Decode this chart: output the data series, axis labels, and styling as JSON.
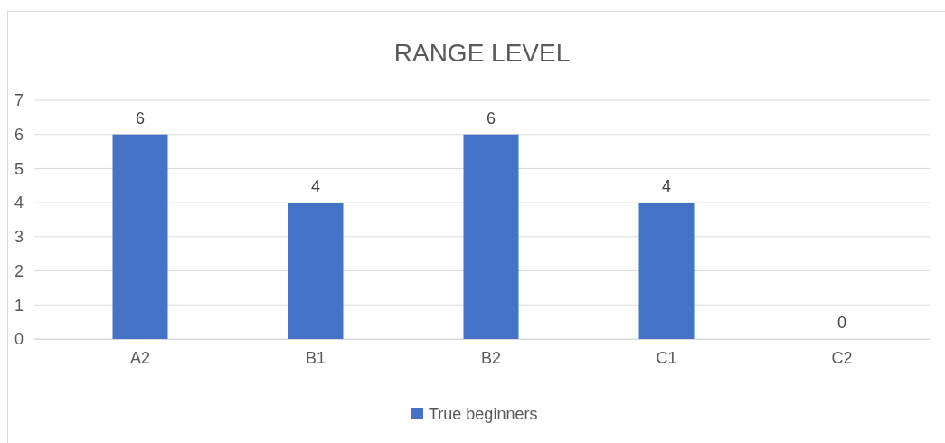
{
  "chart_data": {
    "type": "bar",
    "title": "RANGE LEVEL",
    "categories": [
      "A2",
      "B1",
      "B2",
      "C1",
      "C2"
    ],
    "series": [
      {
        "name": "True beginners",
        "color": "#4472c4",
        "values": [
          6,
          4,
          6,
          4,
          0
        ]
      }
    ],
    "ylim": [
      0,
      7
    ],
    "yticks": [
      0,
      1,
      2,
      3,
      4,
      5,
      6,
      7
    ],
    "grid": "y",
    "legend": "bottom",
    "data_labels": true
  }
}
